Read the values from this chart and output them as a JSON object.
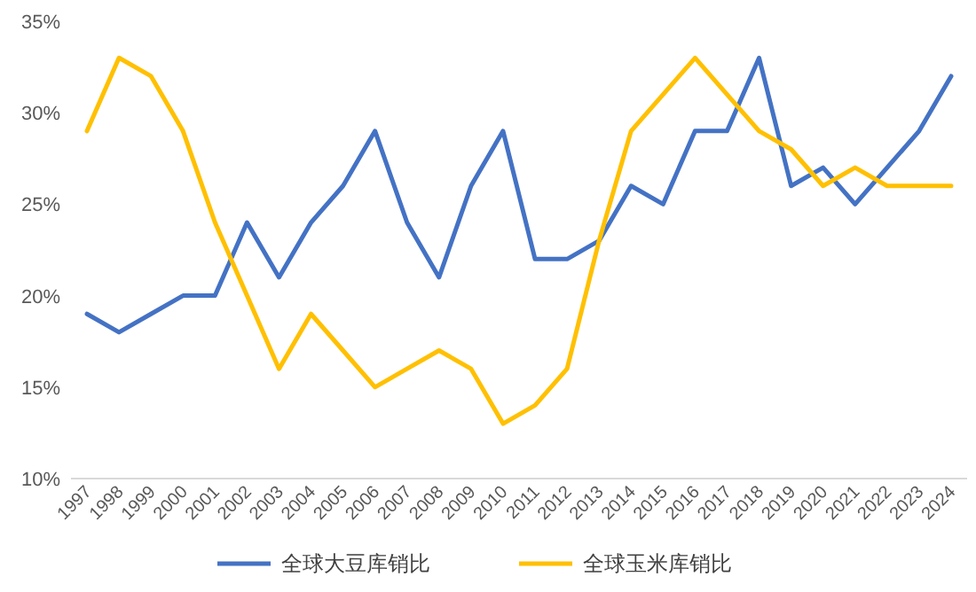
{
  "chart_data": {
    "type": "line",
    "categories": [
      "1997",
      "1998",
      "1999",
      "2000",
      "2001",
      "2002",
      "2003",
      "2004",
      "2005",
      "2006",
      "2007",
      "2008",
      "2009",
      "2010",
      "2011",
      "2012",
      "2013",
      "2014",
      "2015",
      "2016",
      "2017",
      "2018",
      "2019",
      "2020",
      "2021",
      "2022",
      "2023",
      "2024"
    ],
    "series": [
      {
        "name": "全球大豆库销比",
        "color": "#4472c4",
        "values": [
          19,
          18,
          19,
          20,
          20,
          24,
          21,
          24,
          26,
          29,
          24,
          21,
          26,
          29,
          22,
          22,
          23,
          26,
          25,
          29,
          29,
          33,
          26,
          27,
          25,
          27,
          29,
          32
        ]
      },
      {
        "name": "全球玉米库销比",
        "color": "#ffc000",
        "values": [
          29,
          33,
          32,
          29,
          24,
          20,
          16,
          19,
          17,
          15,
          16,
          17,
          16,
          13,
          14,
          16,
          23,
          29,
          31,
          33,
          31,
          29,
          28,
          26,
          27,
          26,
          26,
          26
        ]
      }
    ],
    "ylim": [
      10,
      35
    ],
    "yticks": [
      {
        "value": 10,
        "label": "10%"
      },
      {
        "value": 15,
        "label": "15%"
      },
      {
        "value": 20,
        "label": "20%"
      },
      {
        "value": 25,
        "label": "25%"
      },
      {
        "value": 30,
        "label": "30%"
      },
      {
        "value": 35,
        "label": "35%"
      }
    ],
    "legend": "bottom",
    "marker": "none",
    "line_style": "solid"
  }
}
